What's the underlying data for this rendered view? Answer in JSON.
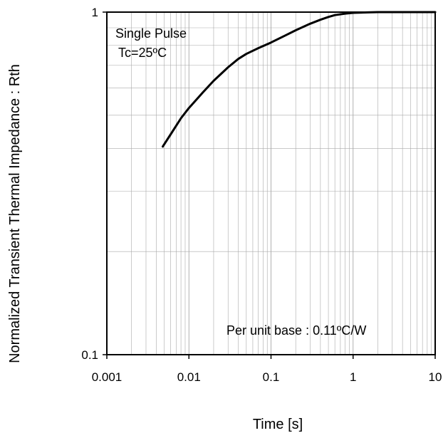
{
  "chart_data": {
    "type": "line",
    "title": "",
    "xlabel": "Time [s]",
    "ylabel": "Normalized Transient Thermal Impedance : Rth",
    "xscale": "log",
    "yscale": "log",
    "xlim": [
      0.001,
      10
    ],
    "ylim": [
      0.1,
      1
    ],
    "x_ticks": [
      0.001,
      0.01,
      0.1,
      1,
      10
    ],
    "x_tick_labels": [
      "0.001",
      "0.01",
      "0.1",
      "1",
      "10"
    ],
    "y_ticks": [
      0.1,
      1
    ],
    "y_tick_labels": [
      "0.1",
      "1"
    ],
    "grid": true,
    "series": [
      {
        "color": "#000000",
        "x": [
          0.0048,
          0.006,
          0.008,
          0.01,
          0.015,
          0.02,
          0.03,
          0.04,
          0.05,
          0.07,
          0.1,
          0.15,
          0.2,
          0.3,
          0.4,
          0.5,
          0.6,
          0.8,
          1.0,
          1.5,
          2,
          3,
          5,
          10
        ],
        "y": [
          0.405,
          0.44,
          0.49,
          0.525,
          0.585,
          0.63,
          0.69,
          0.73,
          0.755,
          0.785,
          0.815,
          0.855,
          0.885,
          0.925,
          0.95,
          0.968,
          0.98,
          0.99,
          0.995,
          0.998,
          1.0,
          1.0,
          1.0,
          1.0
        ]
      }
    ],
    "annotations": {
      "pulse_line1": "Single Pulse",
      "pulse_line2": "Tc=25ºC",
      "base": "Per unit base  : 0.11ºC/W"
    }
  }
}
